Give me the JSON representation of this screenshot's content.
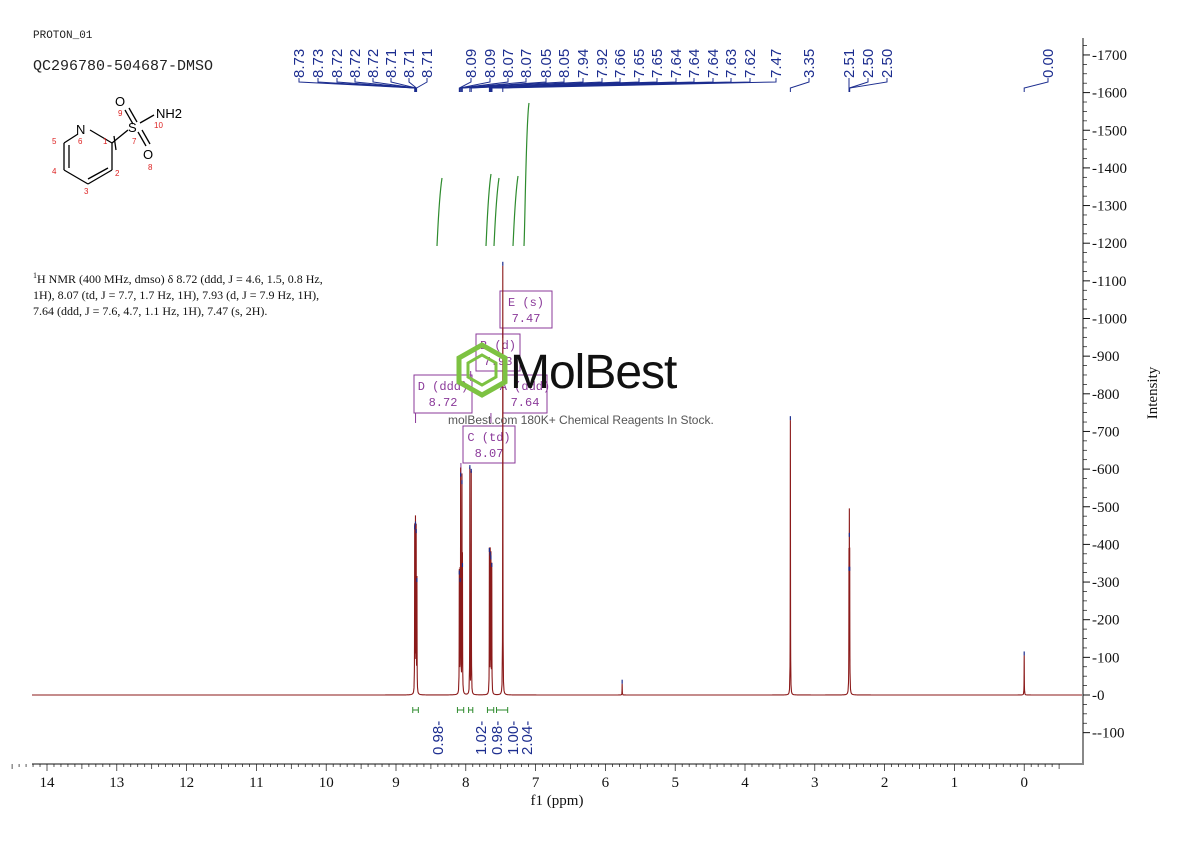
{
  "header": {
    "experiment": "PROTON_01",
    "sample": "QC296780-504687-DMSO"
  },
  "structure": {
    "atoms": [
      "N",
      "S",
      "O",
      "O",
      "NH2"
    ],
    "atom_numbers": [
      "1",
      "2",
      "3",
      "4",
      "5",
      "6",
      "7",
      "8",
      "9",
      "10"
    ]
  },
  "nmr_text": {
    "superscript": "1",
    "lines": [
      "H NMR (400 MHz, dmso) δ 8.72 (ddd, J = 4.6, 1.5, 0.8 Hz,",
      "1H), 8.07 (td, J = 7.7, 1.7 Hz, 1H), 7.93 (d, J = 7.9 Hz, 1H),",
      "7.64 (ddd, J = 7.6, 4.7, 1.1 Hz, 1H), 7.47 (s, 2H)."
    ]
  },
  "watermark": {
    "brand": "MolBest",
    "tagline": "molBest.com 180K+ Chemical Reagents In Stock."
  },
  "colors": {
    "spectrum": "#8b1a1a",
    "peak_labels": "#1c2d8f",
    "integrals": "#2e8b2e",
    "multiplet_boxes": "#8b3a9a",
    "watermark_logo": "#7dc242"
  },
  "chart_data": {
    "type": "line",
    "xlabel": "f1 (ppm)",
    "ylabel": "Intensity",
    "xlim": [
      14.5,
      -0.5
    ],
    "ylim": [
      -150,
      1750
    ],
    "x_ticks": [
      14,
      13,
      12,
      11,
      10,
      9,
      8,
      7,
      6,
      5,
      4,
      3,
      2,
      1,
      0
    ],
    "y_ticks": [
      -100,
      0,
      100,
      200,
      300,
      400,
      500,
      600,
      700,
      800,
      900,
      1000,
      1100,
      1200,
      1300,
      1400,
      1500,
      1600,
      1700
    ],
    "peaks": [
      {
        "ppm": 8.732,
        "height": 440
      },
      {
        "ppm": 8.721,
        "height": 450
      },
      {
        "ppm": 8.711,
        "height": 430
      },
      {
        "ppm": 8.7,
        "height": 300
      },
      {
        "ppm": 8.093,
        "height": 320
      },
      {
        "ppm": 8.082,
        "height": 300
      },
      {
        "ppm": 8.074,
        "height": 580
      },
      {
        "ppm": 8.055,
        "height": 560
      },
      {
        "ppm": 8.048,
        "height": 340
      },
      {
        "ppm": 7.942,
        "height": 600
      },
      {
        "ppm": 7.922,
        "height": 590
      },
      {
        "ppm": 7.662,
        "height": 380
      },
      {
        "ppm": 7.65,
        "height": 370
      },
      {
        "ppm": 7.64,
        "height": 360
      },
      {
        "ppm": 7.628,
        "height": 340
      },
      {
        "ppm": 7.47,
        "height": 1140
      },
      {
        "ppm": 5.76,
        "height": 30
      },
      {
        "ppm": 3.35,
        "height": 730
      },
      {
        "ppm": 2.51,
        "height": 330
      },
      {
        "ppm": 2.505,
        "height": 420
      },
      {
        "ppm": 2.5,
        "height": 330
      },
      {
        "ppm": 0.0,
        "height": 105
      }
    ],
    "peak_labels": [
      "8.73",
      "8.73",
      "8.72",
      "8.72",
      "8.72",
      "8.71",
      "8.71",
      "8.71",
      "8.09",
      "8.09",
      "8.07",
      "8.07",
      "8.05",
      "8.05",
      "7.94",
      "7.92",
      "7.66",
      "7.65",
      "7.65",
      "7.64",
      "7.64",
      "7.64",
      "7.63",
      "7.62",
      "7.47",
      "3.35",
      "2.51",
      "2.50",
      "2.50",
      "0.00"
    ],
    "peak_label_ppm": [
      8.732,
      8.729,
      8.723,
      8.72,
      8.716,
      8.712,
      8.708,
      8.705,
      8.093,
      8.09,
      8.074,
      8.07,
      8.054,
      8.05,
      7.942,
      7.922,
      7.662,
      7.655,
      7.651,
      7.644,
      7.641,
      7.637,
      7.63,
      7.625,
      7.47,
      3.35,
      2.51,
      2.505,
      2.5,
      0.0
    ],
    "integrals": [
      {
        "from": 8.76,
        "to": 8.68,
        "value": "0.98"
      },
      {
        "from": 8.12,
        "to": 8.03,
        "value": "1.02"
      },
      {
        "from": 7.96,
        "to": 7.9,
        "value": "0.98"
      },
      {
        "from": 7.69,
        "to": 7.6,
        "value": "1.00"
      },
      {
        "from": 7.56,
        "to": 7.4,
        "value": "2.04"
      }
    ],
    "multiplets": [
      {
        "label": "D (ddd)",
        "value": "8.72",
        "ppm": 8.72
      },
      {
        "label": "C (td)",
        "value": "8.07",
        "ppm": 8.07
      },
      {
        "label": "B (d)",
        "value": "7.93",
        "ppm": 7.93
      },
      {
        "label": "A (ddd)",
        "value": "7.64",
        "ppm": 7.64
      },
      {
        "label": "E (s)",
        "value": "7.47",
        "ppm": 7.47
      }
    ]
  }
}
